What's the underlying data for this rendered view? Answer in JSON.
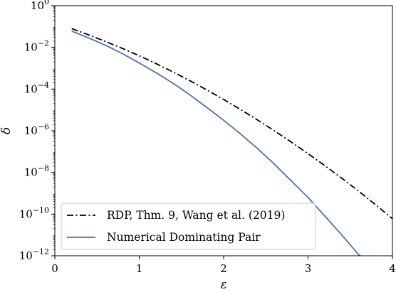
{
  "chart_data": {
    "type": "line",
    "xlabel": "ε",
    "ylabel": "δ",
    "xlim": [
      0,
      4
    ],
    "ylim_exponent": [
      -12,
      0
    ],
    "yscale": "log",
    "grid": false,
    "legend_position": "bottom-left",
    "x_ticks": [
      "0",
      "1",
      "2",
      "3",
      "4"
    ],
    "y_tick_exponents": [
      "0",
      "−2",
      "−4",
      "−6",
      "−8",
      "−10",
      "−12"
    ],
    "y_tick_base": "10",
    "series": [
      {
        "name": "RDP, Thm. 9, Wang et al. (2019)",
        "color": "#000000",
        "style": "dashdot",
        "x": [
          0.2,
          0.4,
          0.6,
          0.8,
          1.0,
          1.2,
          1.4,
          1.6,
          1.8,
          2.0,
          2.2,
          2.4,
          2.6,
          2.8,
          3.0,
          3.2,
          3.4,
          3.6,
          3.8,
          4.0
        ],
        "log10_y": [
          -1.1,
          -1.4,
          -1.72,
          -2.05,
          -2.4,
          -2.78,
          -3.18,
          -3.6,
          -4.04,
          -4.5,
          -4.98,
          -5.48,
          -6.0,
          -6.54,
          -7.1,
          -7.68,
          -8.28,
          -8.9,
          -9.55,
          -10.22
        ]
      },
      {
        "name": "Numerical Dominating Pair",
        "color": "#4c72a8",
        "style": "solid",
        "x": [
          0.2,
          0.4,
          0.6,
          0.8,
          1.0,
          1.2,
          1.4,
          1.6,
          1.8,
          2.0,
          2.2,
          2.4,
          2.6,
          2.8,
          3.0,
          3.2,
          3.4,
          3.6,
          3.62
        ],
        "log10_y": [
          -1.22,
          -1.55,
          -1.9,
          -2.3,
          -2.75,
          -3.22,
          -3.72,
          -4.28,
          -4.88,
          -5.5,
          -6.15,
          -6.85,
          -7.6,
          -8.4,
          -9.2,
          -10.1,
          -11.0,
          -11.95,
          -12.0
        ]
      }
    ]
  }
}
